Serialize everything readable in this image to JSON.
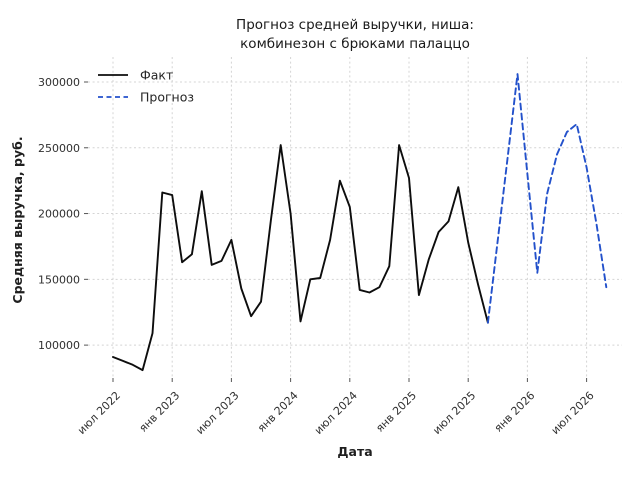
{
  "title": {
    "line1": "Прогноз средней выручки, ниша:",
    "line2": "комбинезон с брюками палаццо"
  },
  "axes": {
    "xlabel": "Дата",
    "ylabel": "Средняя выручка, руб."
  },
  "legend": {
    "position": "upper left",
    "items": [
      {
        "label": "Факт",
        "color": "#0d0d0d",
        "style": "solid"
      },
      {
        "label": "Прогноз",
        "color": "#2351cb",
        "style": "dashed"
      }
    ]
  },
  "chart_data": {
    "type": "line",
    "title": "Прогноз средней выручки, ниша: комбинезон с брюками палаццо",
    "xlabel": "Дата",
    "ylabel": "Средняя выручка, руб.",
    "grid": true,
    "grid_style": "dashed-light-gray",
    "background": "#ffffff",
    "ylim": [
      75000,
      319000
    ],
    "y_ticks": [
      100000,
      150000,
      200000,
      250000,
      300000
    ],
    "x_tick_positions": [
      0,
      6,
      12,
      18,
      24,
      30,
      36,
      42,
      48
    ],
    "x_tick_labels": [
      "июл 2022",
      "янв 2023",
      "июл 2023",
      "янв 2024",
      "июл 2024",
      "янв 2025",
      "июл 2025",
      "янв 2026",
      "июл 2026"
    ],
    "x_unit": "months, 0 = 2022-07",
    "series": [
      {
        "name": "Факт",
        "color": "#0d0d0d",
        "dash": "solid",
        "months": [
          "2022-07",
          "2022-08",
          "2022-09",
          "2022-10",
          "2022-11",
          "2022-12",
          "2023-01",
          "2023-02",
          "2023-03",
          "2023-04",
          "2023-05",
          "2023-06",
          "2023-07",
          "2023-08",
          "2023-09",
          "2023-10",
          "2023-11",
          "2023-12",
          "2024-01",
          "2024-02",
          "2024-03",
          "2024-04",
          "2024-05",
          "2024-06",
          "2024-07",
          "2024-08",
          "2024-09",
          "2024-10",
          "2024-11",
          "2024-12",
          "2025-01",
          "2025-02",
          "2025-03",
          "2025-04",
          "2025-05",
          "2025-06",
          "2025-07",
          "2025-08",
          "2025-09"
        ],
        "x": [
          0,
          1,
          2,
          3,
          4,
          5,
          6,
          7,
          8,
          9,
          10,
          11,
          12,
          13,
          14,
          15,
          16,
          17,
          18,
          19,
          20,
          21,
          22,
          23,
          24,
          25,
          26,
          27,
          28,
          29,
          30,
          31,
          32,
          33,
          34,
          35,
          36,
          37,
          38
        ],
        "values": [
          91000,
          88000,
          85000,
          81000,
          109000,
          216000,
          214000,
          163000,
          169000,
          217000,
          161000,
          164000,
          180000,
          143000,
          122000,
          133000,
          195000,
          252000,
          200000,
          118000,
          150000,
          151000,
          180000,
          225000,
          205000,
          142000,
          140000,
          144000,
          160000,
          252000,
          227000,
          138000,
          165000,
          186000,
          194000,
          220000,
          178000,
          146000,
          117000
        ]
      },
      {
        "name": "Прогноз",
        "color": "#2351cb",
        "dash": "dashed",
        "months": [
          "2025-09",
          "2025-10",
          "2025-11",
          "2025-12",
          "2026-01",
          "2026-02",
          "2026-03",
          "2026-04",
          "2026-05",
          "2026-06",
          "2026-07",
          "2026-08",
          "2026-09"
        ],
        "x": [
          38,
          39,
          40,
          41,
          42,
          43,
          44,
          45,
          46,
          47,
          48,
          49,
          50
        ],
        "values": [
          117000,
          180000,
          243000,
          306000,
          230000,
          155000,
          215000,
          245000,
          262000,
          268000,
          235000,
          192000,
          144000
        ]
      }
    ]
  }
}
